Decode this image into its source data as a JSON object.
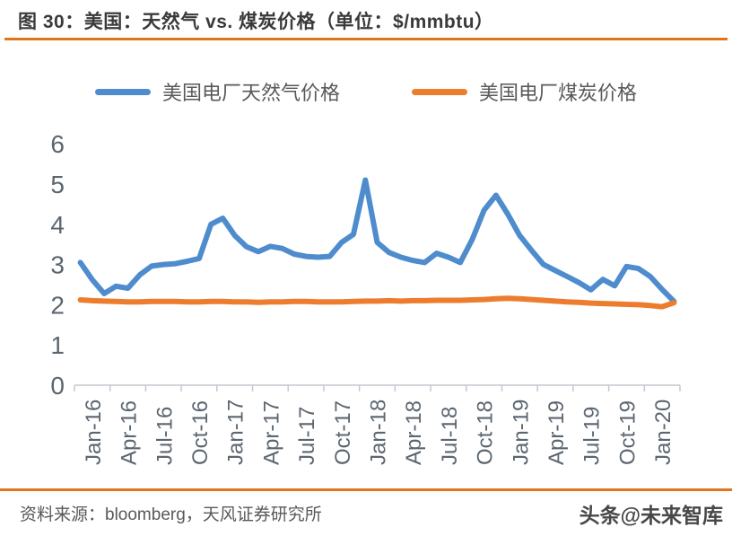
{
  "header": {
    "title": "图 30：美国：天然气 vs. 煤炭价格（单位：$/mmbtu）"
  },
  "legend": [
    {
      "label": "美国电厂天然气价格",
      "color": "#4e8ccd"
    },
    {
      "label": "美国电厂煤炭价格",
      "color": "#ed7c2f"
    }
  ],
  "footer": {
    "source": "资料来源：bloomberg，天风证券研究所",
    "watermark": "头条@未来智库"
  },
  "chart_data": {
    "type": "line",
    "title": "美国：天然气 vs. 煤炭价格",
    "unit": "$/mmbtu",
    "ylim": [
      0,
      6
    ],
    "yticks": [
      0,
      1,
      2,
      3,
      4,
      5,
      6
    ],
    "grid": false,
    "legend_position": "top",
    "x_tick_labels": [
      "Jan-16",
      "Apr-16",
      "Jul-16",
      "Oct-16",
      "Jan-17",
      "Apr-17",
      "Jul-17",
      "Oct-17",
      "Jan-18",
      "Apr-18",
      "Jul-18",
      "Oct-18",
      "Jan-19",
      "Apr-19",
      "Jul-19",
      "Oct-19",
      "Jan-20"
    ],
    "x_frequency": "monthly, Jan-2016 to Mar-2020",
    "series": [
      {
        "name": "美国电厂天然气价格",
        "color": "#4e8ccd",
        "values": [
          3.05,
          2.62,
          2.28,
          2.46,
          2.41,
          2.74,
          2.96,
          3.0,
          3.02,
          3.08,
          3.15,
          4.0,
          4.15,
          3.72,
          3.44,
          3.32,
          3.45,
          3.4,
          3.26,
          3.2,
          3.18,
          3.2,
          3.55,
          3.75,
          5.1,
          3.55,
          3.3,
          3.18,
          3.1,
          3.05,
          3.28,
          3.18,
          3.05,
          3.62,
          4.35,
          4.72,
          4.25,
          3.72,
          3.35,
          3.0,
          2.85,
          2.7,
          2.55,
          2.37,
          2.63,
          2.47,
          2.95,
          2.9,
          2.7,
          2.38,
          2.08
        ]
      },
      {
        "name": "美国电厂煤炭价格",
        "color": "#ed7c2f",
        "values": [
          2.12,
          2.1,
          2.09,
          2.08,
          2.07,
          2.07,
          2.08,
          2.08,
          2.08,
          2.07,
          2.07,
          2.08,
          2.08,
          2.07,
          2.07,
          2.06,
          2.07,
          2.07,
          2.08,
          2.08,
          2.07,
          2.07,
          2.07,
          2.08,
          2.09,
          2.09,
          2.1,
          2.09,
          2.1,
          2.1,
          2.11,
          2.11,
          2.11,
          2.12,
          2.13,
          2.15,
          2.16,
          2.15,
          2.13,
          2.11,
          2.09,
          2.07,
          2.06,
          2.04,
          2.03,
          2.02,
          2.01,
          2.0,
          1.98,
          1.95,
          2.05
        ]
      }
    ]
  }
}
